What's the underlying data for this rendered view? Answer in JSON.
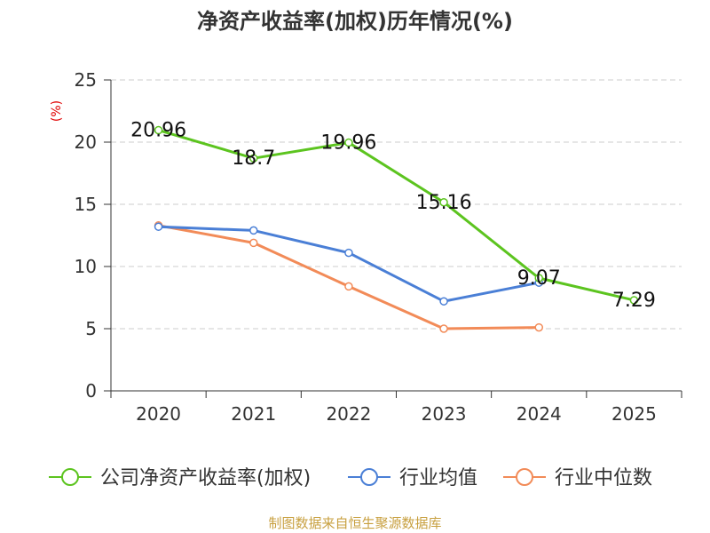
{
  "chart_data": {
    "type": "line",
    "title": "净资产收益率(加权)历年情况(%)",
    "ylabel": "(%)",
    "xlabel": "",
    "categories": [
      "2020",
      "2021",
      "2022",
      "2023",
      "2024",
      "2025"
    ],
    "ylim": [
      0,
      25
    ],
    "yticks": [
      0,
      5,
      10,
      15,
      20,
      25
    ],
    "grid": true,
    "legend_position": "bottom",
    "series": [
      {
        "name": "公司净资产收益率(加权)",
        "color": "#5cc41f",
        "values": [
          20.96,
          18.7,
          19.96,
          15.16,
          9.07,
          7.29
        ],
        "labels": [
          "20.96",
          "18.7",
          "19.96",
          "15.16",
          "9.07",
          "7.29"
        ],
        "show_data_labels": true
      },
      {
        "name": "行业均值",
        "color": "#4a7fd6",
        "values": [
          13.2,
          12.9,
          11.1,
          7.2,
          8.7,
          null
        ],
        "show_data_labels": false
      },
      {
        "name": "行业中位数",
        "color": "#f28b58",
        "values": [
          13.3,
          11.9,
          8.4,
          5.0,
          5.1,
          null
        ],
        "show_data_labels": false
      }
    ],
    "source": "制图数据来自恒生聚源数据库"
  }
}
